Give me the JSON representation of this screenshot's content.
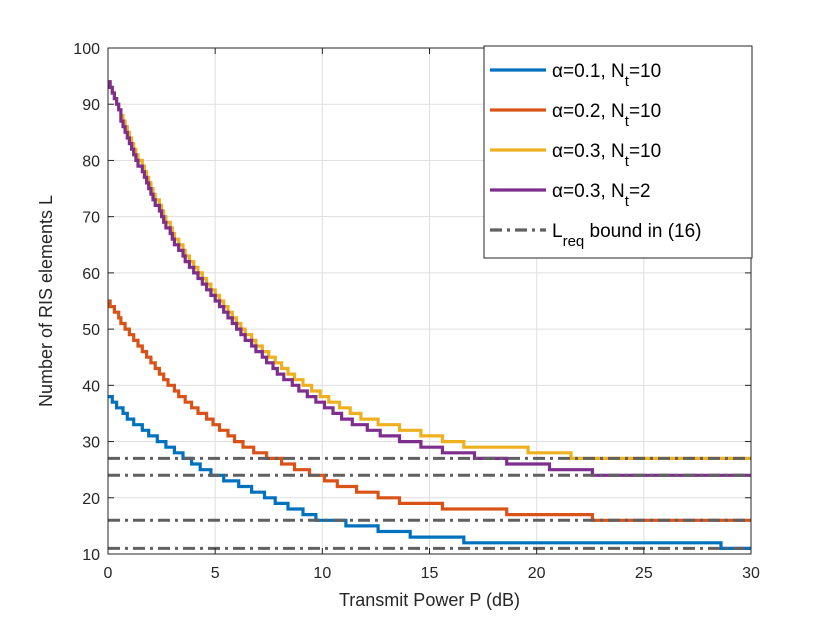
{
  "chart_data": {
    "type": "line",
    "title": "",
    "xlabel": "Transmit Power P (dB)",
    "ylabel": "Number of RIS elements L",
    "xlim": [
      0,
      30
    ],
    "ylim": [
      10,
      100
    ],
    "xticks": [
      0,
      5,
      10,
      15,
      20,
      25,
      30
    ],
    "yticks": [
      10,
      20,
      30,
      40,
      50,
      60,
      70,
      80,
      90,
      100
    ],
    "grid": true,
    "legend_position": "top-right",
    "series": [
      {
        "name": "α=0.1, N_t=10",
        "legend_text": "α=0.1, N",
        "legend_sub": "t",
        "legend_suffix": "=10",
        "color": "#0072BD",
        "style": "solid",
        "x": [
          0,
          1,
          2,
          3,
          4,
          5,
          6,
          7,
          8,
          9,
          10,
          11,
          12,
          13,
          14,
          15,
          16,
          17,
          18,
          19,
          20,
          21,
          22,
          23,
          24,
          25,
          26,
          27,
          28,
          29,
          30
        ],
        "values": [
          38,
          34,
          31,
          28.5,
          26,
          24,
          22.5,
          21,
          19,
          17.5,
          16,
          15.5,
          15,
          14,
          13.5,
          13,
          13,
          12,
          12,
          12,
          12,
          12,
          12,
          12,
          12,
          12,
          12,
          12,
          12,
          11,
          11
        ]
      },
      {
        "name": "α=0.2, N_t=10",
        "legend_text": "α=0.2, N",
        "legend_sub": "t",
        "legend_suffix": "=10",
        "color": "#D95319",
        "style": "solid",
        "x": [
          0,
          1,
          2,
          3,
          4,
          5,
          6,
          7,
          8,
          9,
          10,
          11,
          12,
          13,
          14,
          15,
          16,
          17,
          18,
          19,
          20,
          21,
          22,
          23,
          24,
          25,
          26,
          27,
          28,
          29,
          30
        ],
        "values": [
          55,
          49,
          44,
          39.5,
          36,
          33,
          30,
          28,
          26.5,
          25,
          23.5,
          22,
          21,
          20,
          19,
          19,
          18,
          18,
          18,
          17,
          17,
          17,
          17,
          16,
          16,
          16,
          16,
          16,
          16,
          16,
          16
        ]
      },
      {
        "name": "α=0.3, N_t=10",
        "legend_text": "α=0.3, N",
        "legend_sub": "t",
        "legend_suffix": "=10",
        "color": "#EDB120",
        "style": "solid",
        "x": [
          0,
          1,
          2,
          3,
          4,
          5,
          6,
          7,
          8,
          9,
          10,
          11,
          12,
          13,
          14,
          15,
          16,
          17,
          18,
          19,
          20,
          21,
          22,
          23,
          24,
          25,
          26,
          27,
          28,
          29,
          30
        ],
        "values": [
          94,
          84,
          75,
          67,
          61,
          56,
          51,
          47,
          43.5,
          40.5,
          38,
          36,
          34,
          33,
          32,
          31,
          30,
          29,
          29,
          29,
          28,
          28,
          27,
          27,
          27,
          27,
          27,
          27,
          27,
          27,
          27
        ]
      },
      {
        "name": "α=0.3, N_t=2",
        "legend_text": "α=0.3, N",
        "legend_sub": "t",
        "legend_suffix": "=2",
        "color": "#7E2F8E",
        "style": "solid",
        "x": [
          0,
          1,
          2,
          3,
          4,
          5,
          6,
          7,
          8,
          9,
          10,
          11,
          12,
          13,
          14,
          15,
          16,
          17,
          18,
          19,
          20,
          21,
          22,
          23,
          24,
          25,
          26,
          27,
          28,
          29,
          30
        ],
        "values": [
          94,
          83,
          74,
          66,
          60,
          55,
          50,
          46,
          42,
          39,
          36.5,
          34,
          32.5,
          31,
          30,
          29,
          28,
          27.5,
          27,
          26,
          26,
          25,
          25,
          24,
          24,
          24,
          24,
          24,
          24,
          24,
          24
        ]
      },
      {
        "name": "L_req bound in (16)",
        "legend_text": "L",
        "legend_sub": "req",
        "legend_suffix": " bound in (16)",
        "color": "#606060",
        "style": "dashdot",
        "hlines": [
          11,
          16,
          24,
          27
        ]
      }
    ]
  }
}
